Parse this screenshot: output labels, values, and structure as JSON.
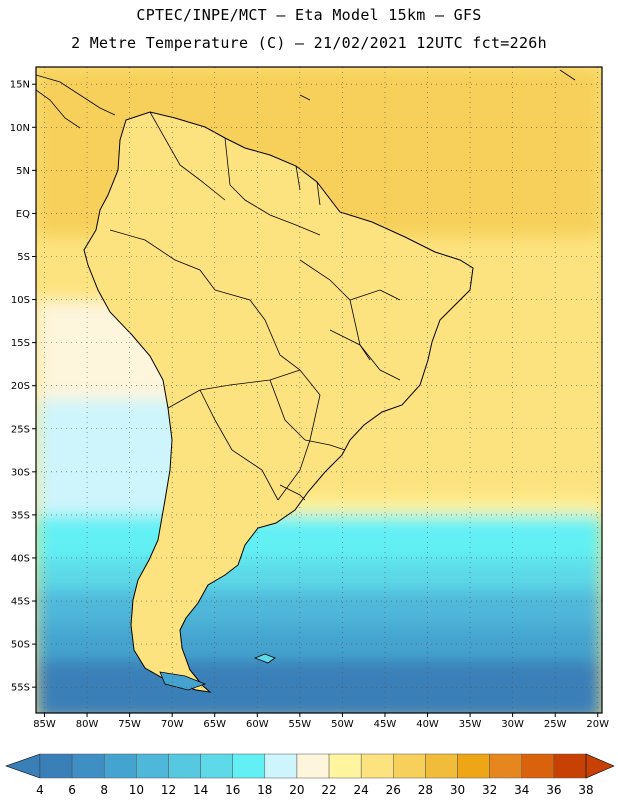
{
  "header": {
    "title_line1": "CPTEC/INPE/MCT –  Eta Model 15km – GFS",
    "title_line2": "2 Metre Temperature (C) – 21/02/2021 12UTC fct=226h"
  },
  "map": {
    "lon_range": [
      -86,
      -19.5
    ],
    "lat_range": [
      -58,
      17
    ],
    "lat_ticks": [
      {
        "value": 15,
        "label": "15N"
      },
      {
        "value": 10,
        "label": "10N"
      },
      {
        "value": 5,
        "label": "5N"
      },
      {
        "value": 0,
        "label": "EQ"
      },
      {
        "value": -5,
        "label": "5S"
      },
      {
        "value": -10,
        "label": "10S"
      },
      {
        "value": -15,
        "label": "15S"
      },
      {
        "value": -20,
        "label": "20S"
      },
      {
        "value": -25,
        "label": "25S"
      },
      {
        "value": -30,
        "label": "30S"
      },
      {
        "value": -35,
        "label": "35S"
      },
      {
        "value": -40,
        "label": "40S"
      },
      {
        "value": -45,
        "label": "45S"
      },
      {
        "value": -50,
        "label": "50S"
      },
      {
        "value": -55,
        "label": "55S"
      }
    ],
    "lon_ticks": [
      {
        "value": -85,
        "label": "85W"
      },
      {
        "value": -80,
        "label": "80W"
      },
      {
        "value": -75,
        "label": "75W"
      },
      {
        "value": -70,
        "label": "70W"
      },
      {
        "value": -65,
        "label": "65W"
      },
      {
        "value": -60,
        "label": "60W"
      },
      {
        "value": -55,
        "label": "55W"
      },
      {
        "value": -50,
        "label": "50W"
      },
      {
        "value": -45,
        "label": "45W"
      },
      {
        "value": -40,
        "label": "40W"
      },
      {
        "value": -35,
        "label": "35W"
      },
      {
        "value": -30,
        "label": "30W"
      },
      {
        "value": -25,
        "label": "25W"
      },
      {
        "value": -20,
        "label": "20W"
      }
    ],
    "grid": "dotted"
  },
  "colorbar": {
    "labels": [
      "4",
      "6",
      "8",
      "10",
      "12",
      "14",
      "16",
      "18",
      "20",
      "22",
      "24",
      "26",
      "28",
      "30",
      "32",
      "34",
      "36",
      "38"
    ],
    "colors": [
      "#3a7fb8",
      "#3f8fc4",
      "#45a4cf",
      "#4fb7da",
      "#56c8e0",
      "#5dd9e7",
      "#62f0f4",
      "#cdf5fb",
      "#fdf5dc",
      "#fff5a0",
      "#fde37f",
      "#f6d05a",
      "#f0bc3a",
      "#eea516",
      "#e6861f",
      "#d9620c",
      "#c74105"
    ],
    "low_arrow_color": "#3a7fb8",
    "high_arrow_color": "#c74105"
  }
}
